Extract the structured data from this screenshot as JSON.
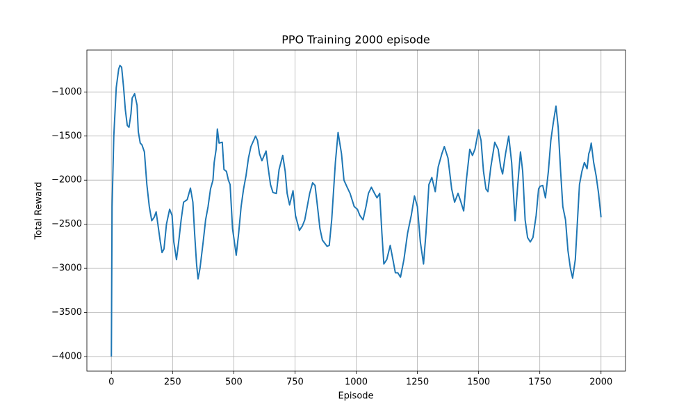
{
  "chart_data": {
    "type": "line",
    "title": "PPO Training 2000 episode",
    "x_label": "Episode",
    "y_label": "Total Reward",
    "color": "#1f77b4",
    "grid": true,
    "xlim": [
      -100,
      2100
    ],
    "ylim": [
      -4165,
      -525
    ],
    "xticks": [
      0,
      250,
      500,
      750,
      1000,
      1250,
      1500,
      1750,
      2000
    ],
    "yticks": [
      {
        "value": -4000,
        "label": "−4000"
      },
      {
        "value": -3500,
        "label": "−3500"
      },
      {
        "value": -3000,
        "label": "−3000"
      },
      {
        "value": -2500,
        "label": "−2500"
      },
      {
        "value": -2000,
        "label": "−2000"
      },
      {
        "value": -1500,
        "label": "−1500"
      },
      {
        "value": -1000,
        "label": "−1000"
      }
    ],
    "x": [
      0,
      3,
      10,
      20,
      30,
      35,
      42,
      50,
      57,
      65,
      72,
      80,
      85,
      95,
      105,
      110,
      118,
      125,
      135,
      145,
      155,
      165,
      175,
      183,
      190,
      200,
      207,
      215,
      225,
      238,
      248,
      255,
      266,
      275,
      285,
      295,
      310,
      323,
      333,
      340,
      348,
      354,
      362,
      375,
      385,
      395,
      405,
      415,
      420,
      428,
      433,
      440,
      453,
      460,
      470,
      478,
      485,
      495,
      510,
      520,
      530,
      540,
      550,
      560,
      570,
      589,
      597,
      605,
      615,
      632,
      640,
      650,
      660,
      674,
      685,
      700,
      710,
      718,
      728,
      742,
      752,
      768,
      780,
      790,
      800,
      810,
      822,
      832,
      842,
      852,
      862,
      881,
      890,
      900,
      915,
      926,
      940,
      950,
      963,
      975,
      992,
      1005,
      1015,
      1028,
      1040,
      1050,
      1062,
      1075,
      1085,
      1096,
      1105,
      1113,
      1125,
      1139,
      1150,
      1160,
      1170,
      1181,
      1195,
      1210,
      1225,
      1238,
      1250,
      1262,
      1275,
      1285,
      1297,
      1309,
      1323,
      1335,
      1350,
      1360,
      1375,
      1390,
      1402,
      1416,
      1428,
      1439,
      1450,
      1464,
      1475,
      1485,
      1500,
      1510,
      1520,
      1530,
      1538,
      1550,
      1566,
      1580,
      1590,
      1598,
      1610,
      1623,
      1635,
      1649,
      1660,
      1671,
      1680,
      1690,
      1700,
      1711,
      1722,
      1735,
      1745,
      1751,
      1762,
      1773,
      1785,
      1795,
      1805,
      1816,
      1825,
      1835,
      1844,
      1855,
      1865,
      1875,
      1884,
      1895,
      1905,
      1912,
      1922,
      1932,
      1943,
      1950,
      1955,
      1960,
      1970,
      1980,
      1990,
      2000
    ],
    "values": [
      -4000,
      -2300,
      -1500,
      -950,
      -740,
      -700,
      -720,
      -950,
      -1200,
      -1380,
      -1400,
      -1250,
      -1070,
      -1020,
      -1150,
      -1450,
      -1580,
      -1600,
      -1680,
      -2050,
      -2300,
      -2460,
      -2420,
      -2360,
      -2500,
      -2700,
      -2820,
      -2780,
      -2500,
      -2330,
      -2400,
      -2700,
      -2900,
      -2700,
      -2450,
      -2250,
      -2220,
      -2090,
      -2250,
      -2600,
      -2950,
      -3120,
      -3000,
      -2700,
      -2450,
      -2300,
      -2100,
      -2000,
      -1800,
      -1650,
      -1420,
      -1580,
      -1570,
      -1880,
      -1900,
      -2000,
      -2050,
      -2550,
      -2850,
      -2600,
      -2300,
      -2100,
      -1950,
      -1750,
      -1620,
      -1500,
      -1550,
      -1700,
      -1780,
      -1670,
      -1850,
      -2050,
      -2140,
      -2150,
      -1880,
      -1720,
      -1900,
      -2150,
      -2280,
      -2120,
      -2400,
      -2570,
      -2520,
      -2450,
      -2300,
      -2150,
      -2030,
      -2060,
      -2300,
      -2550,
      -2680,
      -2750,
      -2740,
      -2450,
      -1800,
      -1460,
      -1700,
      -2000,
      -2080,
      -2150,
      -2300,
      -2330,
      -2400,
      -2450,
      -2300,
      -2150,
      -2080,
      -2150,
      -2200,
      -2150,
      -2600,
      -2950,
      -2900,
      -2740,
      -2900,
      -3050,
      -3050,
      -3100,
      -2900,
      -2600,
      -2400,
      -2180,
      -2300,
      -2700,
      -2950,
      -2600,
      -2050,
      -1970,
      -2130,
      -1850,
      -1700,
      -1620,
      -1750,
      -2100,
      -2250,
      -2150,
      -2250,
      -2350,
      -2000,
      -1650,
      -1720,
      -1650,
      -1430,
      -1550,
      -1900,
      -2100,
      -2130,
      -1850,
      -1570,
      -1650,
      -1850,
      -1930,
      -1700,
      -1500,
      -1800,
      -2460,
      -2050,
      -1680,
      -1900,
      -2450,
      -2650,
      -2700,
      -2650,
      -2400,
      -2100,
      -2070,
      -2060,
      -2200,
      -1900,
      -1550,
      -1350,
      -1160,
      -1400,
      -1900,
      -2300,
      -2450,
      -2800,
      -3000,
      -3110,
      -2900,
      -2400,
      -2050,
      -1900,
      -1800,
      -1870,
      -1700,
      -1660,
      -1580,
      -1800,
      -1950,
      -2150,
      -2420
    ]
  }
}
